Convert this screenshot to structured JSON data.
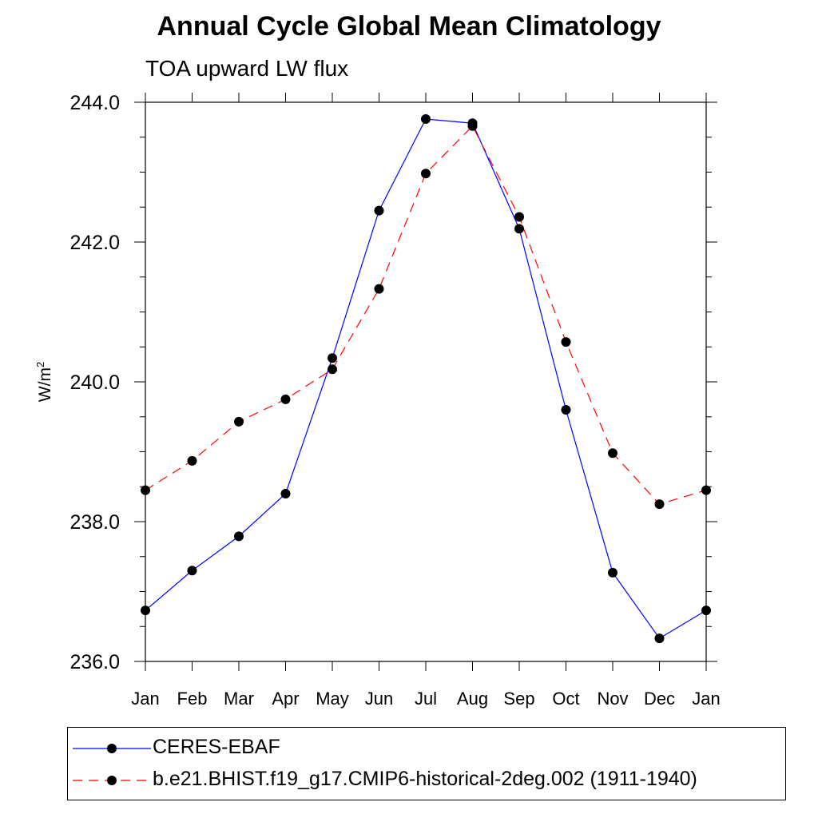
{
  "title": "Annual Cycle Global Mean Climatology",
  "subtitle": "TOA upward LW flux",
  "colors": {
    "series1": "#0000ff",
    "series2": "#ff0000",
    "marker": "#000000"
  },
  "chart_data": {
    "type": "line",
    "title": "Annual Cycle Global Mean Climatology",
    "subtitle": "TOA upward LW flux",
    "xlabel": "",
    "ylabel": "W/m",
    "ylabel_superscript": "2",
    "categories": [
      "Jan",
      "Feb",
      "Mar",
      "Apr",
      "May",
      "Jun",
      "Jul",
      "Aug",
      "Sep",
      "Oct",
      "Nov",
      "Dec",
      "Jan"
    ],
    "yticks": [
      "236.0",
      "238.0",
      "240.0",
      "242.0",
      "244.0"
    ],
    "ylim": [
      236,
      244
    ],
    "grid": false,
    "legend_position": "bottom",
    "series": [
      {
        "name": "CERES-EBAF",
        "style": "solid",
        "values": [
          236.73,
          237.3,
          237.79,
          238.4,
          240.34,
          242.45,
          243.76,
          243.7,
          242.19,
          239.6,
          237.27,
          236.33,
          236.73
        ]
      },
      {
        "name": "b.e21.BHIST.f19_g17.CMIP6-historical-2deg.002 (1911-1940)",
        "style": "dashed",
        "values": [
          238.45,
          238.87,
          239.43,
          239.75,
          240.18,
          241.33,
          242.98,
          243.66,
          242.36,
          240.57,
          238.98,
          238.25,
          238.45
        ]
      }
    ]
  }
}
